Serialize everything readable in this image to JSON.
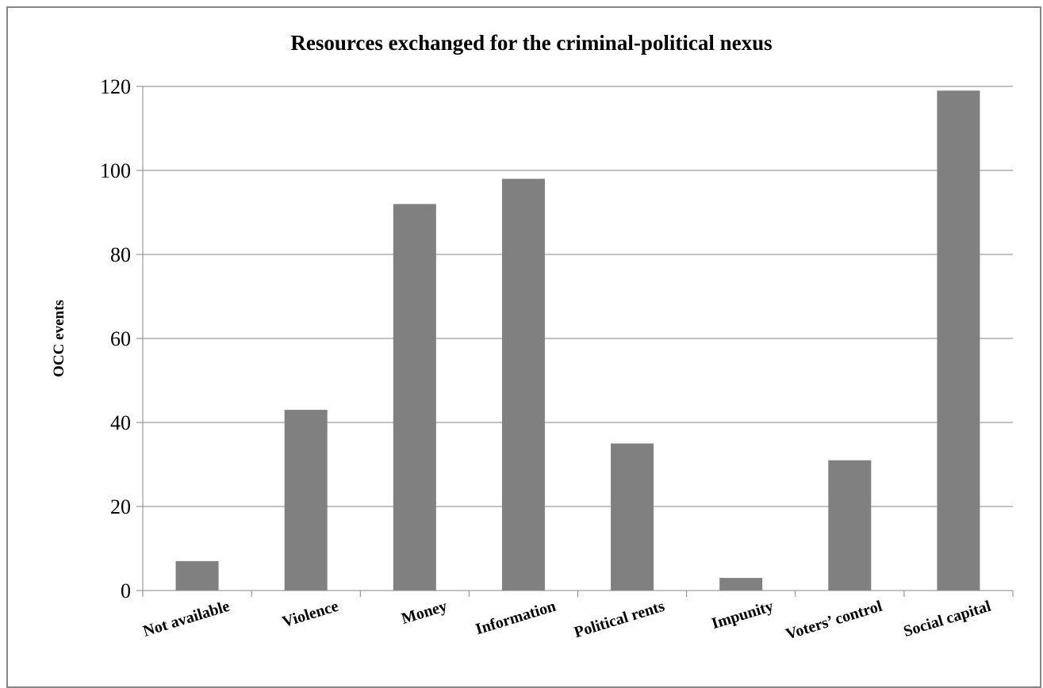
{
  "chart_data": {
    "type": "bar",
    "title": "Resources exchanged for the criminal-political  nexus",
    "xlabel": "",
    "ylabel": "OCC  events",
    "categories": [
      "Not available",
      "Violence",
      "Money",
      "Information",
      "Political rents",
      "Impunity",
      "Voters’ control",
      "Social capital"
    ],
    "values": [
      7,
      43,
      92,
      98,
      35,
      3,
      31,
      119
    ],
    "ylim": [
      0,
      120
    ],
    "yticks": [
      0,
      20,
      40,
      60,
      80,
      100,
      120
    ],
    "grid": true,
    "bar_color": "#808080",
    "grid_color": "#868686"
  }
}
